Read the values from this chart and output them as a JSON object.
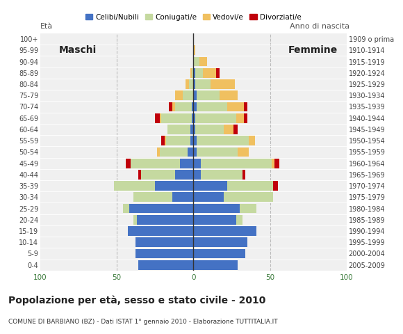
{
  "age_groups": [
    "0-4",
    "5-9",
    "10-14",
    "15-19",
    "20-24",
    "25-29",
    "30-34",
    "35-39",
    "40-44",
    "45-49",
    "50-54",
    "55-59",
    "60-64",
    "65-69",
    "70-74",
    "75-79",
    "80-84",
    "85-89",
    "90-94",
    "95-99",
    "100+"
  ],
  "birth_years": [
    "2005-2009",
    "2000-2004",
    "1995-1999",
    "1990-1994",
    "1985-1989",
    "1980-1984",
    "1975-1979",
    "1970-1974",
    "1965-1969",
    "1960-1964",
    "1955-1959",
    "1950-1954",
    "1945-1949",
    "1940-1944",
    "1935-1939",
    "1930-1934",
    "1925-1929",
    "1920-1924",
    "1915-1919",
    "1910-1914",
    "1909 o prima"
  ],
  "colors": {
    "celibe": "#4472c4",
    "coniugato": "#c5d9a0",
    "vedovo": "#f0c060",
    "divorziato": "#c0000b"
  },
  "males": {
    "celibe": [
      36,
      38,
      38,
      43,
      37,
      42,
      14,
      25,
      12,
      9,
      4,
      2,
      2,
      1,
      1,
      0,
      0,
      0,
      0,
      0,
      0
    ],
    "coniugato": [
      0,
      0,
      0,
      0,
      2,
      4,
      25,
      27,
      22,
      32,
      18,
      16,
      15,
      20,
      11,
      7,
      3,
      1,
      0,
      0,
      0
    ],
    "vedovo": [
      0,
      0,
      0,
      0,
      0,
      0,
      0,
      0,
      0,
      0,
      2,
      1,
      0,
      1,
      2,
      5,
      2,
      1,
      0,
      0,
      0
    ],
    "divorziato": [
      0,
      0,
      0,
      0,
      0,
      0,
      0,
      0,
      2,
      3,
      0,
      2,
      0,
      3,
      2,
      0,
      0,
      0,
      0,
      0,
      0
    ]
  },
  "females": {
    "celibe": [
      29,
      34,
      35,
      41,
      28,
      30,
      20,
      22,
      5,
      5,
      2,
      2,
      1,
      1,
      2,
      2,
      1,
      1,
      0,
      0,
      0
    ],
    "coniugato": [
      0,
      0,
      0,
      0,
      4,
      11,
      32,
      30,
      27,
      46,
      27,
      34,
      19,
      27,
      20,
      15,
      10,
      5,
      4,
      0,
      0
    ],
    "vedovo": [
      0,
      0,
      0,
      0,
      0,
      0,
      0,
      0,
      0,
      2,
      7,
      4,
      6,
      5,
      11,
      12,
      16,
      9,
      5,
      1,
      0
    ],
    "divorziato": [
      0,
      0,
      0,
      0,
      0,
      0,
      0,
      3,
      2,
      3,
      0,
      0,
      3,
      2,
      2,
      0,
      0,
      2,
      0,
      0,
      0
    ]
  },
  "xlim": 100,
  "title": "Popolazione per età, sesso e stato civile - 2010",
  "subtitle": "COMUNE DI BARBIANO (BZ) - Dati ISTAT 1° gennaio 2010 - Elaborazione TUTTITALIA.IT",
  "legend_labels": [
    "Celibi/Nubili",
    "Coniugati/e",
    "Vedovi/e",
    "Divorziati/e"
  ],
  "ylabel_left": "Età",
  "ylabel_right": "Anno di nascita",
  "label_maschi": "Maschi",
  "label_femmine": "Femmine",
  "bg_color": "#ffffff",
  "plot_bg_color": "#f0f0f0",
  "bar_height": 0.85
}
